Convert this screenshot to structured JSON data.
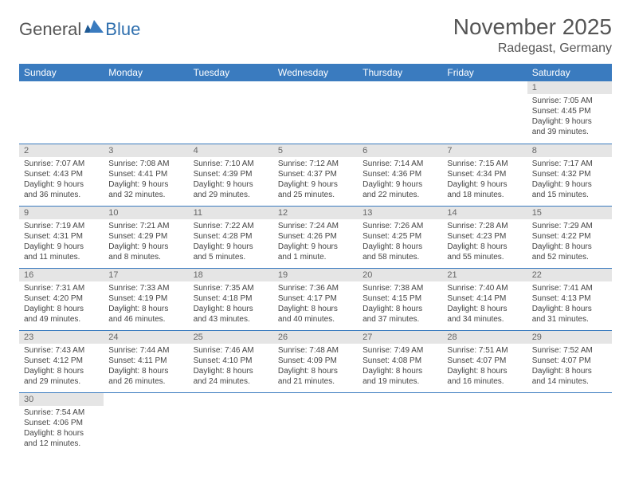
{
  "logo": {
    "text1": "General",
    "text2": "Blue"
  },
  "title": "November 2025",
  "location": "Radegast, Germany",
  "colors": {
    "header_bg": "#3a7bbf",
    "header_text": "#ffffff",
    "daynum_bg": "#e5e5e5",
    "rule": "#3a7bbf",
    "logo_blue": "#2f6fae",
    "text": "#444"
  },
  "weekdays": [
    "Sunday",
    "Monday",
    "Tuesday",
    "Wednesday",
    "Thursday",
    "Friday",
    "Saturday"
  ],
  "weeks": [
    [
      null,
      null,
      null,
      null,
      null,
      null,
      {
        "n": "1",
        "sunrise": "Sunrise: 7:05 AM",
        "sunset": "Sunset: 4:45 PM",
        "daylight1": "Daylight: 9 hours",
        "daylight2": "and 39 minutes."
      }
    ],
    [
      {
        "n": "2",
        "sunrise": "Sunrise: 7:07 AM",
        "sunset": "Sunset: 4:43 PM",
        "daylight1": "Daylight: 9 hours",
        "daylight2": "and 36 minutes."
      },
      {
        "n": "3",
        "sunrise": "Sunrise: 7:08 AM",
        "sunset": "Sunset: 4:41 PM",
        "daylight1": "Daylight: 9 hours",
        "daylight2": "and 32 minutes."
      },
      {
        "n": "4",
        "sunrise": "Sunrise: 7:10 AM",
        "sunset": "Sunset: 4:39 PM",
        "daylight1": "Daylight: 9 hours",
        "daylight2": "and 29 minutes."
      },
      {
        "n": "5",
        "sunrise": "Sunrise: 7:12 AM",
        "sunset": "Sunset: 4:37 PM",
        "daylight1": "Daylight: 9 hours",
        "daylight2": "and 25 minutes."
      },
      {
        "n": "6",
        "sunrise": "Sunrise: 7:14 AM",
        "sunset": "Sunset: 4:36 PM",
        "daylight1": "Daylight: 9 hours",
        "daylight2": "and 22 minutes."
      },
      {
        "n": "7",
        "sunrise": "Sunrise: 7:15 AM",
        "sunset": "Sunset: 4:34 PM",
        "daylight1": "Daylight: 9 hours",
        "daylight2": "and 18 minutes."
      },
      {
        "n": "8",
        "sunrise": "Sunrise: 7:17 AM",
        "sunset": "Sunset: 4:32 PM",
        "daylight1": "Daylight: 9 hours",
        "daylight2": "and 15 minutes."
      }
    ],
    [
      {
        "n": "9",
        "sunrise": "Sunrise: 7:19 AM",
        "sunset": "Sunset: 4:31 PM",
        "daylight1": "Daylight: 9 hours",
        "daylight2": "and 11 minutes."
      },
      {
        "n": "10",
        "sunrise": "Sunrise: 7:21 AM",
        "sunset": "Sunset: 4:29 PM",
        "daylight1": "Daylight: 9 hours",
        "daylight2": "and 8 minutes."
      },
      {
        "n": "11",
        "sunrise": "Sunrise: 7:22 AM",
        "sunset": "Sunset: 4:28 PM",
        "daylight1": "Daylight: 9 hours",
        "daylight2": "and 5 minutes."
      },
      {
        "n": "12",
        "sunrise": "Sunrise: 7:24 AM",
        "sunset": "Sunset: 4:26 PM",
        "daylight1": "Daylight: 9 hours",
        "daylight2": "and 1 minute."
      },
      {
        "n": "13",
        "sunrise": "Sunrise: 7:26 AM",
        "sunset": "Sunset: 4:25 PM",
        "daylight1": "Daylight: 8 hours",
        "daylight2": "and 58 minutes."
      },
      {
        "n": "14",
        "sunrise": "Sunrise: 7:28 AM",
        "sunset": "Sunset: 4:23 PM",
        "daylight1": "Daylight: 8 hours",
        "daylight2": "and 55 minutes."
      },
      {
        "n": "15",
        "sunrise": "Sunrise: 7:29 AM",
        "sunset": "Sunset: 4:22 PM",
        "daylight1": "Daylight: 8 hours",
        "daylight2": "and 52 minutes."
      }
    ],
    [
      {
        "n": "16",
        "sunrise": "Sunrise: 7:31 AM",
        "sunset": "Sunset: 4:20 PM",
        "daylight1": "Daylight: 8 hours",
        "daylight2": "and 49 minutes."
      },
      {
        "n": "17",
        "sunrise": "Sunrise: 7:33 AM",
        "sunset": "Sunset: 4:19 PM",
        "daylight1": "Daylight: 8 hours",
        "daylight2": "and 46 minutes."
      },
      {
        "n": "18",
        "sunrise": "Sunrise: 7:35 AM",
        "sunset": "Sunset: 4:18 PM",
        "daylight1": "Daylight: 8 hours",
        "daylight2": "and 43 minutes."
      },
      {
        "n": "19",
        "sunrise": "Sunrise: 7:36 AM",
        "sunset": "Sunset: 4:17 PM",
        "daylight1": "Daylight: 8 hours",
        "daylight2": "and 40 minutes."
      },
      {
        "n": "20",
        "sunrise": "Sunrise: 7:38 AM",
        "sunset": "Sunset: 4:15 PM",
        "daylight1": "Daylight: 8 hours",
        "daylight2": "and 37 minutes."
      },
      {
        "n": "21",
        "sunrise": "Sunrise: 7:40 AM",
        "sunset": "Sunset: 4:14 PM",
        "daylight1": "Daylight: 8 hours",
        "daylight2": "and 34 minutes."
      },
      {
        "n": "22",
        "sunrise": "Sunrise: 7:41 AM",
        "sunset": "Sunset: 4:13 PM",
        "daylight1": "Daylight: 8 hours",
        "daylight2": "and 31 minutes."
      }
    ],
    [
      {
        "n": "23",
        "sunrise": "Sunrise: 7:43 AM",
        "sunset": "Sunset: 4:12 PM",
        "daylight1": "Daylight: 8 hours",
        "daylight2": "and 29 minutes."
      },
      {
        "n": "24",
        "sunrise": "Sunrise: 7:44 AM",
        "sunset": "Sunset: 4:11 PM",
        "daylight1": "Daylight: 8 hours",
        "daylight2": "and 26 minutes."
      },
      {
        "n": "25",
        "sunrise": "Sunrise: 7:46 AM",
        "sunset": "Sunset: 4:10 PM",
        "daylight1": "Daylight: 8 hours",
        "daylight2": "and 24 minutes."
      },
      {
        "n": "26",
        "sunrise": "Sunrise: 7:48 AM",
        "sunset": "Sunset: 4:09 PM",
        "daylight1": "Daylight: 8 hours",
        "daylight2": "and 21 minutes."
      },
      {
        "n": "27",
        "sunrise": "Sunrise: 7:49 AM",
        "sunset": "Sunset: 4:08 PM",
        "daylight1": "Daylight: 8 hours",
        "daylight2": "and 19 minutes."
      },
      {
        "n": "28",
        "sunrise": "Sunrise: 7:51 AM",
        "sunset": "Sunset: 4:07 PM",
        "daylight1": "Daylight: 8 hours",
        "daylight2": "and 16 minutes."
      },
      {
        "n": "29",
        "sunrise": "Sunrise: 7:52 AM",
        "sunset": "Sunset: 4:07 PM",
        "daylight1": "Daylight: 8 hours",
        "daylight2": "and 14 minutes."
      }
    ],
    [
      {
        "n": "30",
        "sunrise": "Sunrise: 7:54 AM",
        "sunset": "Sunset: 4:06 PM",
        "daylight1": "Daylight: 8 hours",
        "daylight2": "and 12 minutes."
      },
      null,
      null,
      null,
      null,
      null,
      null
    ]
  ]
}
